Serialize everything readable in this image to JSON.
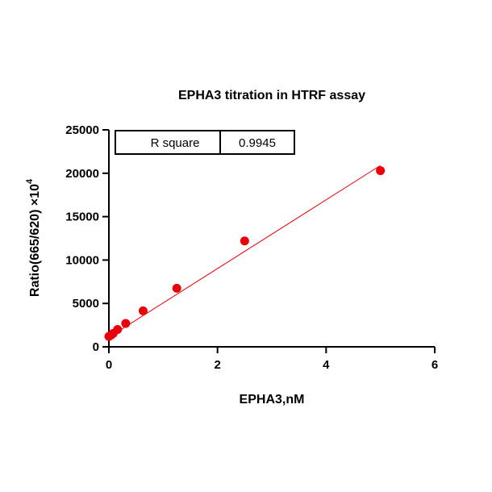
{
  "chart_data": {
    "type": "scatter",
    "title": "EPHA3 titration in HTRF assay",
    "xlabel": "EPHA3,nM",
    "ylabel_main": "Ratio(665/620) ×10",
    "ylabel_exponent": "4",
    "xlim": [
      0,
      6
    ],
    "ylim": [
      0,
      25000
    ],
    "x_ticks": [
      0,
      2,
      4,
      6
    ],
    "y_ticks": [
      0,
      5000,
      10000,
      15000,
      20000,
      25000
    ],
    "grid": false,
    "series": [
      {
        "color": "#e8000b",
        "points": [
          {
            "x": 0.0,
            "y": 1200
          },
          {
            "x": 0.04,
            "y": 1350
          },
          {
            "x": 0.08,
            "y": 1550
          },
          {
            "x": 0.16,
            "y": 2000
          },
          {
            "x": 0.31,
            "y": 2700
          },
          {
            "x": 0.63,
            "y": 4150
          },
          {
            "x": 1.25,
            "y": 6750
          },
          {
            "x": 2.5,
            "y": 12200
          },
          {
            "x": 5.0,
            "y": 20300
          }
        ],
        "fit_line": {
          "x0": 0,
          "y0": 1100,
          "x1": 5.0,
          "y1": 20900
        }
      }
    ],
    "annotation_table": {
      "label": "R square",
      "value": "0.9945"
    }
  }
}
